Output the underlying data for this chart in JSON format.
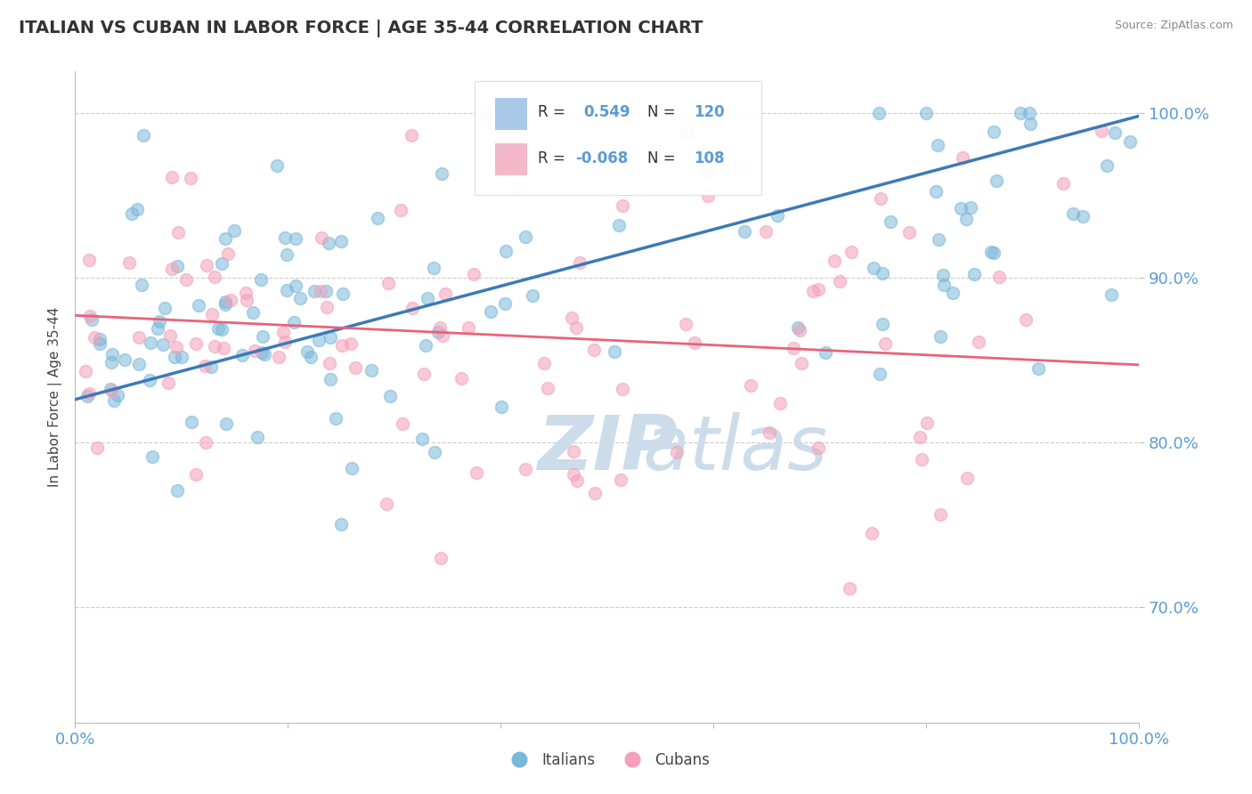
{
  "title": "ITALIAN VS CUBAN IN LABOR FORCE | AGE 35-44 CORRELATION CHART",
  "source_text": "Source: ZipAtlas.com",
  "ylabel": "In Labor Force | Age 35-44",
  "xlim": [
    0.0,
    1.0
  ],
  "ylim": [
    0.63,
    1.025
  ],
  "yticks": [
    0.7,
    0.8,
    0.9,
    1.0
  ],
  "ytick_labels": [
    "70.0%",
    "80.0%",
    "90.0%",
    "100.0%"
  ],
  "xticks": [
    0.0,
    0.2,
    0.4,
    0.6,
    0.8,
    1.0
  ],
  "xtick_labels": [
    "0.0%",
    "",
    "",
    "",
    "",
    "100.0%"
  ],
  "blue_R": 0.549,
  "blue_N": 120,
  "pink_R": -0.068,
  "pink_N": 108,
  "blue_color": "#7ab8d9",
  "pink_color": "#f4a0b8",
  "blue_line_color": "#3d7ab5",
  "pink_line_color": "#e8637a",
  "axis_color": "#5b9bd5",
  "grid_color": "#cccccc",
  "watermark_color": "#ccdcea",
  "italians_label": "Italians",
  "cubans_label": "Cubans",
  "blue_trend_x0": 0.0,
  "blue_trend_y0": 0.826,
  "blue_trend_x1": 1.0,
  "blue_trend_y1": 0.998,
  "pink_trend_x0": 0.0,
  "pink_trend_y0": 0.877,
  "pink_trend_x1": 1.0,
  "pink_trend_y1": 0.847
}
